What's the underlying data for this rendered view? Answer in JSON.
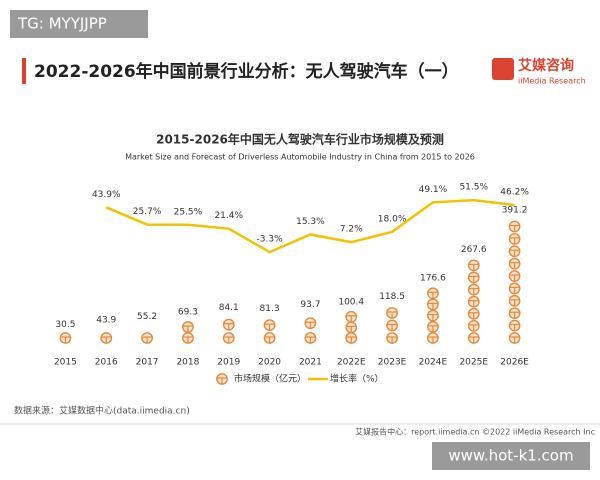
{
  "header": {
    "watermark": "TG: MYYJJPP",
    "title": "2022-2026年中国前景行业分析：无人驾驶汽车（一）",
    "logo": "艾媒咨询",
    "logo_sub": "iiMedia Research"
  },
  "chart_data": {
    "type": "bar",
    "title": "2015-2026年中国无人驾驶汽车行业市场规模及预测",
    "subtitle": "Market Size and Forecast of Driverless Automobile Industry in China from 2015 to 2026",
    "categories": [
      "2015",
      "2016",
      "2017",
      "2018",
      "2019",
      "2020",
      "2021",
      "2022E",
      "2023E",
      "2024E",
      "2025E",
      "2026E"
    ],
    "series": [
      {
        "name": "市场规模（亿元）",
        "color": "#e8883a",
        "type": "bar",
        "values": [
          30.5,
          43.9,
          55.2,
          69.3,
          84.1,
          81.3,
          93.7,
          100.4,
          118.5,
          176.6,
          267.6,
          391.2
        ]
      },
      {
        "name": "增长率（%）",
        "color": "#f2c200",
        "type": "line",
        "axis": "y2",
        "values": [
          null,
          43.9,
          25.7,
          25.5,
          21.4,
          -3.3,
          15.3,
          7.2,
          18.0,
          49.1,
          51.5,
          46.2
        ],
        "value_labels": [
          null,
          "43.9%",
          "25.7%",
          "25.5%",
          "21.4%",
          "-3.3%",
          "15.3%",
          "7.2%",
          "18.0%",
          "49.1%",
          "51.5%",
          "46.2%"
        ]
      }
    ],
    "ylim": [
      0,
      480
    ],
    "y2lim": [
      -100,
      60
    ],
    "source": "数据来源：艾媒数据中心(data.iimedia.cn)"
  },
  "footer": {
    "text": "艾媒报告中心：report.iimedia.cn  ©2022  iiMedia Research  Inc",
    "watermark": "www.hot-k1.com"
  }
}
